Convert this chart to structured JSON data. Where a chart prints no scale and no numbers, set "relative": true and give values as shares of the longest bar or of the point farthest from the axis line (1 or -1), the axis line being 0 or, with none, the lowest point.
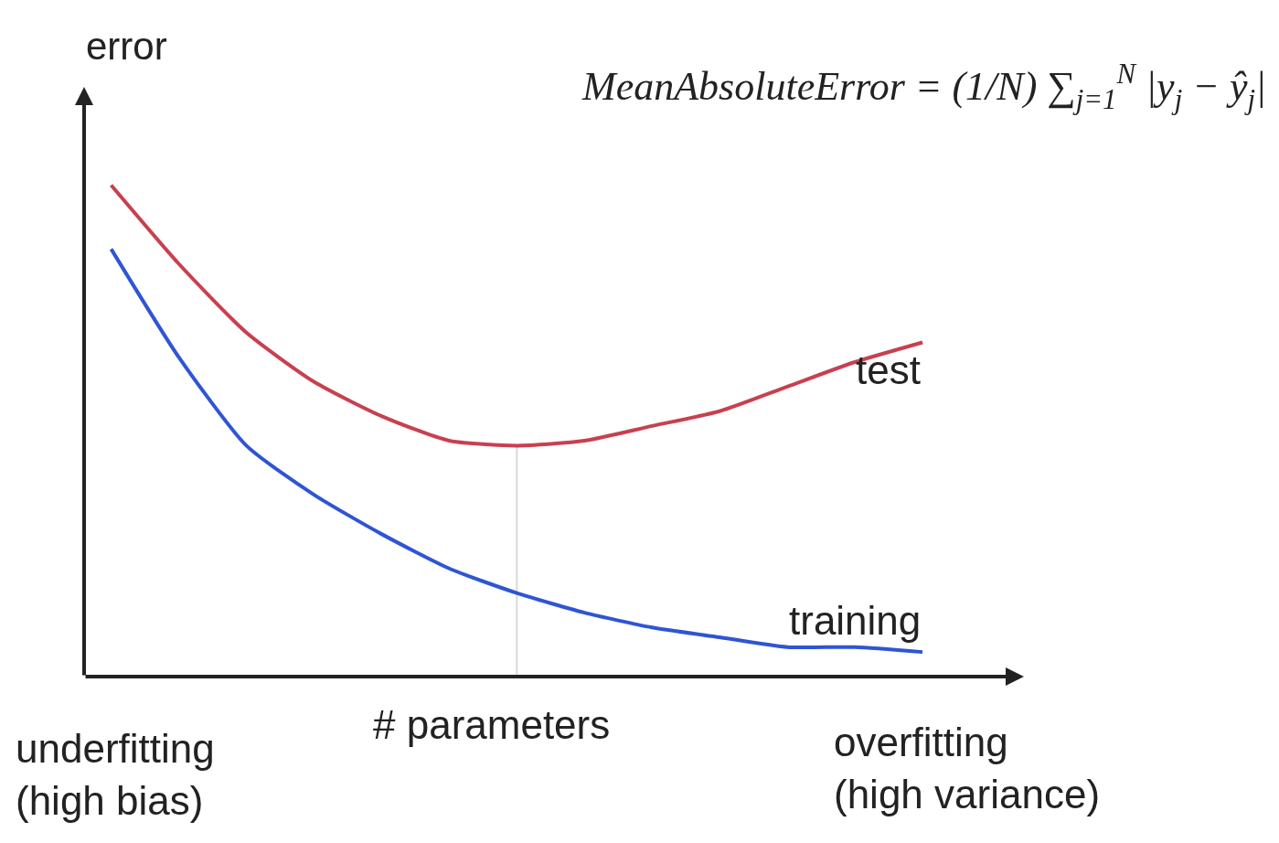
{
  "chart_data": {
    "type": "line",
    "relative": true,
    "xlabel": "# parameters",
    "ylabel": "error",
    "categories": [
      null,
      null,
      null,
      null,
      null,
      null,
      null,
      null,
      null,
      null,
      null,
      null,
      null
    ],
    "series": [
      {
        "name": "test",
        "color": "#c8404f",
        "values": [
          1,
          0.84,
          0.7,
          0.6,
          0.53,
          0.48,
          0.47,
          0.48,
          0.51,
          0.54,
          0.59,
          0.64,
          0.68
        ]
      },
      {
        "name": "training",
        "color": "#2f55d4",
        "values": [
          0.87,
          0.65,
          0.47,
          0.37,
          0.29,
          0.22,
          0.17,
          0.13,
          0.1,
          0.08,
          0.06,
          0.06,
          0.05
        ]
      }
    ],
    "annotations": [
      "MeanAbsoluteError = (1/N) ∑$_{j=1}$$^{N}$ |y$_{j}$ − ŷ$_{j}$|",
      "underfitting\n(high bias)",
      "overfitting\n(high variance)"
    ],
    "tick_labels": false,
    "grid": false,
    "legend": false,
    "marker": "none",
    "line_style": "solid"
  }
}
